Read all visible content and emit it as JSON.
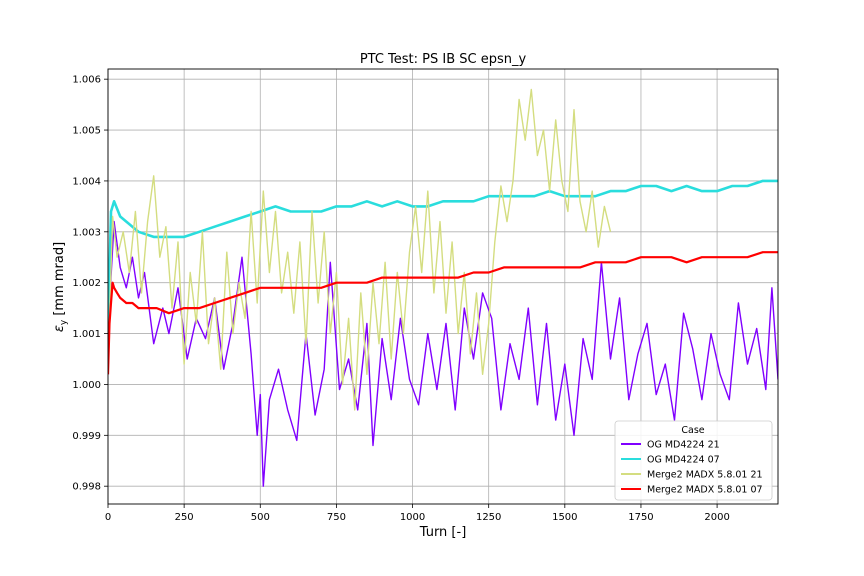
{
  "chart_data": {
    "type": "line",
    "title": "PTC Test: PS IB SC epsn_y",
    "xlabel": "Turn [-]",
    "ylabel_symbol": "ε",
    "ylabel_sub": "y",
    "ylabel_unit": " [mm mrad]",
    "xlim": [
      0,
      2200
    ],
    "ylim": [
      0.99765,
      1.0062
    ],
    "xticks": [
      0,
      250,
      500,
      750,
      1000,
      1250,
      1500,
      1750,
      2000
    ],
    "xtick_labels": [
      "0",
      "250",
      "500",
      "750",
      "1000",
      "1250",
      "1500",
      "1750",
      "2000"
    ],
    "yticks": [
      0.998,
      0.999,
      1.0,
      1.001,
      1.002,
      1.003,
      1.004,
      1.005,
      1.006
    ],
    "ytick_labels": [
      "0.998",
      "0.999",
      "1.000",
      "1.001",
      "1.002",
      "1.003",
      "1.004",
      "1.005",
      "1.006"
    ],
    "grid": true,
    "legend_title": "Case",
    "legend_position": "lower right",
    "series": [
      {
        "name": "OG MD4224 21",
        "color": "#8000ff",
        "x": [
          0,
          10,
          20,
          40,
          60,
          80,
          100,
          120,
          150,
          180,
          200,
          230,
          260,
          290,
          320,
          350,
          380,
          410,
          440,
          470,
          490,
          500,
          510,
          530,
          560,
          590,
          620,
          650,
          680,
          710,
          730,
          760,
          790,
          820,
          850,
          870,
          900,
          930,
          960,
          990,
          1020,
          1050,
          1080,
          1110,
          1140,
          1170,
          1200,
          1230,
          1260,
          1290,
          1320,
          1350,
          1380,
          1410,
          1440,
          1470,
          1500,
          1530,
          1560,
          1590,
          1620,
          1650,
          1680,
          1710,
          1740,
          1770,
          1800,
          1830,
          1860,
          1890,
          1920,
          1950,
          1980,
          2010,
          2040,
          2070,
          2100,
          2130,
          2160,
          2180,
          2200
        ],
        "values": [
          1.0002,
          1.0021,
          1.0032,
          1.0023,
          1.0019,
          1.0025,
          1.0017,
          1.0022,
          1.0008,
          1.0015,
          1.001,
          1.0019,
          1.0005,
          1.0013,
          1.0009,
          1.0017,
          1.0003,
          1.0012,
          1.0025,
          1.0006,
          0.999,
          0.9998,
          0.998,
          0.9997,
          1.0003,
          0.9995,
          0.9989,
          1.001,
          0.9994,
          1.0003,
          1.0024,
          0.9999,
          1.0005,
          0.9995,
          1.0012,
          0.9988,
          1.0009,
          0.9997,
          1.0013,
          1.0001,
          0.9996,
          1.001,
          0.9999,
          1.0012,
          0.9995,
          1.0015,
          1.0005,
          1.0018,
          1.0013,
          0.9995,
          1.0008,
          1.0001,
          1.0015,
          0.9996,
          1.0012,
          0.9993,
          1.0004,
          0.999,
          1.0009,
          1.0001,
          1.0024,
          1.0005,
          1.0017,
          0.9997,
          1.0006,
          1.0012,
          0.9998,
          1.0004,
          0.9993,
          1.0014,
          1.0007,
          0.9997,
          1.001,
          1.0002,
          0.9997,
          1.0016,
          1.0004,
          1.0011,
          0.9999,
          1.0019,
          1.0001
        ]
      },
      {
        "name": "OG MD4224 07",
        "color": "#2adddd",
        "x": [
          0,
          10,
          20,
          40,
          60,
          80,
          100,
          150,
          200,
          250,
          300,
          350,
          400,
          450,
          500,
          550,
          600,
          650,
          700,
          750,
          800,
          850,
          900,
          950,
          1000,
          1050,
          1100,
          1150,
          1200,
          1250,
          1300,
          1350,
          1400,
          1450,
          1500,
          1550,
          1600,
          1650,
          1700,
          1750,
          1800,
          1850,
          1900,
          1950,
          2000,
          2050,
          2100,
          2150,
          2200
        ],
        "values": [
          1.001,
          1.0034,
          1.0036,
          1.0033,
          1.0032,
          1.0031,
          1.003,
          1.0029,
          1.0029,
          1.0029,
          1.003,
          1.0031,
          1.0032,
          1.0033,
          1.0034,
          1.0035,
          1.0034,
          1.0034,
          1.0034,
          1.0035,
          1.0035,
          1.0036,
          1.0035,
          1.0036,
          1.0035,
          1.0035,
          1.0036,
          1.0036,
          1.0036,
          1.0037,
          1.0037,
          1.0037,
          1.0037,
          1.0038,
          1.0037,
          1.0037,
          1.0037,
          1.0038,
          1.0038,
          1.0039,
          1.0039,
          1.0038,
          1.0039,
          1.0038,
          1.0038,
          1.0039,
          1.0039,
          1.004,
          1.004
        ]
      },
      {
        "name": "Merge2 MADX 5.8.01 21",
        "color": "#d4dd80",
        "x": [
          0,
          15,
          30,
          50,
          70,
          90,
          110,
          130,
          150,
          170,
          190,
          210,
          230,
          250,
          270,
          290,
          310,
          330,
          350,
          370,
          390,
          410,
          430,
          450,
          470,
          490,
          510,
          530,
          550,
          570,
          590,
          610,
          630,
          650,
          670,
          690,
          710,
          730,
          750,
          770,
          790,
          810,
          830,
          850,
          870,
          890,
          910,
          930,
          950,
          970,
          990,
          1010,
          1030,
          1050,
          1070,
          1090,
          1110,
          1130,
          1150,
          1170,
          1190,
          1210,
          1230,
          1250,
          1270,
          1290,
          1310,
          1330,
          1350,
          1370,
          1390,
          1410,
          1430,
          1450,
          1470,
          1490,
          1510,
          1530,
          1550,
          1570,
          1590,
          1610,
          1630,
          1650
        ],
        "values": [
          1.0003,
          1.0033,
          1.0025,
          1.003,
          1.0022,
          1.0034,
          1.0018,
          1.0032,
          1.0041,
          1.0025,
          1.0031,
          1.0015,
          1.0028,
          1.0004,
          1.0022,
          1.0012,
          1.003,
          1.0008,
          1.0017,
          1.0003,
          1.0026,
          1.001,
          1.002,
          1.0013,
          1.0034,
          1.0016,
          1.0038,
          1.0022,
          1.0034,
          1.0018,
          1.0026,
          1.0014,
          1.0028,
          1.0008,
          1.0034,
          1.0016,
          1.003,
          1.001,
          1.0022,
          1.0,
          1.0013,
          0.9995,
          1.0018,
          1.0002,
          1.002,
          1.0008,
          1.0024,
          1.0005,
          1.0022,
          1.001,
          1.0026,
          1.0035,
          1.0022,
          1.0038,
          1.0018,
          1.0032,
          1.0014,
          1.0028,
          1.001,
          1.0022,
          1.0006,
          1.0018,
          1.0002,
          1.0012,
          1.0028,
          1.0039,
          1.0032,
          1.004,
          1.0056,
          1.0048,
          1.0058,
          1.0045,
          1.005,
          1.0038,
          1.0052,
          1.004,
          1.0034,
          1.0054,
          1.0036,
          1.003,
          1.0038,
          1.0027,
          1.0035,
          1.003
        ]
      },
      {
        "name": "Merge2 MADX 5.8.01 07",
        "color": "#ff0000",
        "x": [
          0,
          5,
          10,
          15,
          20,
          30,
          40,
          60,
          80,
          100,
          130,
          160,
          200,
          250,
          300,
          350,
          400,
          450,
          500,
          550,
          600,
          650,
          700,
          750,
          800,
          850,
          900,
          950,
          1000,
          1050,
          1100,
          1150,
          1200,
          1250,
          1300,
          1350,
          1400,
          1450,
          1500,
          1550,
          1600,
          1650,
          1700,
          1750,
          1800,
          1850,
          1900,
          1950,
          2000,
          2050,
          2100,
          2150,
          2200
        ],
        "values": [
          1.0002,
          1.0012,
          1.0016,
          1.002,
          1.0019,
          1.0018,
          1.0017,
          1.0016,
          1.0016,
          1.0015,
          1.0015,
          1.0015,
          1.0014,
          1.0015,
          1.0015,
          1.0016,
          1.0017,
          1.0018,
          1.0019,
          1.0019,
          1.0019,
          1.0019,
          1.0019,
          1.002,
          1.002,
          1.002,
          1.0021,
          1.0021,
          1.0021,
          1.0021,
          1.0021,
          1.0021,
          1.0022,
          1.0022,
          1.0023,
          1.0023,
          1.0023,
          1.0023,
          1.0023,
          1.0023,
          1.0024,
          1.0024,
          1.0024,
          1.0025,
          1.0025,
          1.0025,
          1.0024,
          1.0025,
          1.0025,
          1.0025,
          1.0025,
          1.0026,
          1.0026
        ]
      }
    ]
  }
}
